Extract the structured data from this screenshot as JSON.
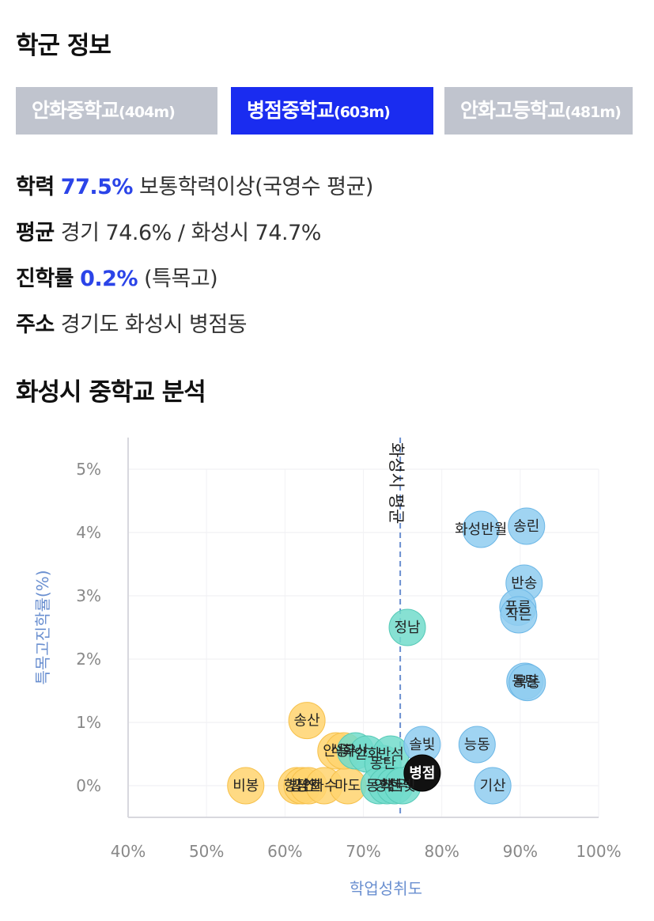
{
  "section_title": "학군 정보",
  "tabs": [
    {
      "name": "안화중학교",
      "dist": "(404m)",
      "active": false
    },
    {
      "name": "병점중학교",
      "dist": "(603m)",
      "active": true
    },
    {
      "name": "안화고등학교",
      "dist": "(481m)",
      "active": false
    }
  ],
  "info": {
    "academic": {
      "label": "학력",
      "value": "77.5%",
      "desc": "보통학력이상(국영수 평균)"
    },
    "average": {
      "label": "평균",
      "text": "경기 74.6% / 화성시 74.7%"
    },
    "advance": {
      "label": "진학률",
      "value": "0.2%",
      "desc": "(특목고)"
    },
    "address": {
      "label": "주소",
      "text": "경기도 화성시 병점동"
    }
  },
  "chart_title": "화성시 중학교 분석",
  "colors": {
    "accent": "#2b44e8",
    "tab_active": "#1a2cf0",
    "tab_inactive": "#c0c4ce",
    "blue": "#8fcdf0",
    "teal": "#72dccb",
    "yellow": "#ffd46e",
    "selected": "#111111",
    "ref_line": "#6a8fd0"
  },
  "chart_data": {
    "type": "scatter",
    "xlabel": "학업성취도",
    "ylabel": "특목고진학률(%)",
    "xlim": [
      40,
      100
    ],
    "ylim": [
      -0.5,
      5.5
    ],
    "xticks": [
      "40%",
      "50%",
      "60%",
      "70%",
      "80%",
      "90%",
      "100%"
    ],
    "yticks": [
      "0%",
      "1%",
      "2%",
      "3%",
      "4%",
      "5%"
    ],
    "reference": {
      "label": "화성시 평균",
      "x": 74.7
    },
    "points": [
      {
        "label": "비봉",
        "x": 55.0,
        "y": 0.0,
        "group": "yellow"
      },
      {
        "label": "송산",
        "x": 62.8,
        "y": 1.03,
        "group": "yellow"
      },
      {
        "label": "향남",
        "x": 61.5,
        "y": 0.0,
        "group": "yellow"
      },
      {
        "label": "발안",
        "x": 62.2,
        "y": 0.0,
        "group": "yellow"
      },
      {
        "label": "장안",
        "x": 63.0,
        "y": 0.0,
        "group": "yellow"
      },
      {
        "label": "화수",
        "x": 65.0,
        "y": 0.0,
        "group": "yellow"
      },
      {
        "label": "마도",
        "x": 68.0,
        "y": 0.0,
        "group": "yellow"
      },
      {
        "label": "안용",
        "x": 66.5,
        "y": 0.55,
        "group": "yellow"
      },
      {
        "label": "석우",
        "x": 67.5,
        "y": 0.55,
        "group": "yellow"
      },
      {
        "label": "화산",
        "x": 69.0,
        "y": 0.55,
        "group": "teal"
      },
      {
        "label": "안화",
        "x": 70.5,
        "y": 0.5,
        "group": "teal"
      },
      {
        "label": "동탄",
        "x": 72.5,
        "y": 0.35,
        "group": "teal"
      },
      {
        "label": "반석",
        "x": 73.5,
        "y": 0.5,
        "group": "teal"
      },
      {
        "label": "동학",
        "x": 72.0,
        "y": 0.0,
        "group": "teal"
      },
      {
        "label": "영천",
        "x": 73.0,
        "y": 0.0,
        "group": "teal"
      },
      {
        "label": "석우",
        "x": 74.0,
        "y": 0.0,
        "group": "teal"
      },
      {
        "label": "한빛",
        "x": 75.0,
        "y": 0.0,
        "group": "teal"
      },
      {
        "label": "정남",
        "x": 75.6,
        "y": 2.5,
        "group": "teal"
      },
      {
        "label": "솔빛",
        "x": 77.5,
        "y": 0.65,
        "group": "blue"
      },
      {
        "label": "병점",
        "x": 77.5,
        "y": 0.2,
        "group": "selected"
      },
      {
        "label": "능동",
        "x": 84.5,
        "y": 0.65,
        "group": "blue"
      },
      {
        "label": "기산",
        "x": 86.5,
        "y": 0.0,
        "group": "blue"
      },
      {
        "label": "화성반월",
        "x": 85.0,
        "y": 4.05,
        "group": "blue"
      },
      {
        "label": "송린",
        "x": 90.8,
        "y": 4.1,
        "group": "blue"
      },
      {
        "label": "반송",
        "x": 90.5,
        "y": 3.2,
        "group": "blue"
      },
      {
        "label": "푸른",
        "x": 89.7,
        "y": 2.82,
        "group": "blue"
      },
      {
        "label": "작은",
        "x": 89.8,
        "y": 2.7,
        "group": "blue"
      },
      {
        "label": "동탄",
        "x": 90.6,
        "y": 1.65,
        "group": "blue"
      },
      {
        "label": "목동",
        "x": 90.9,
        "y": 1.63,
        "group": "blue"
      }
    ]
  }
}
